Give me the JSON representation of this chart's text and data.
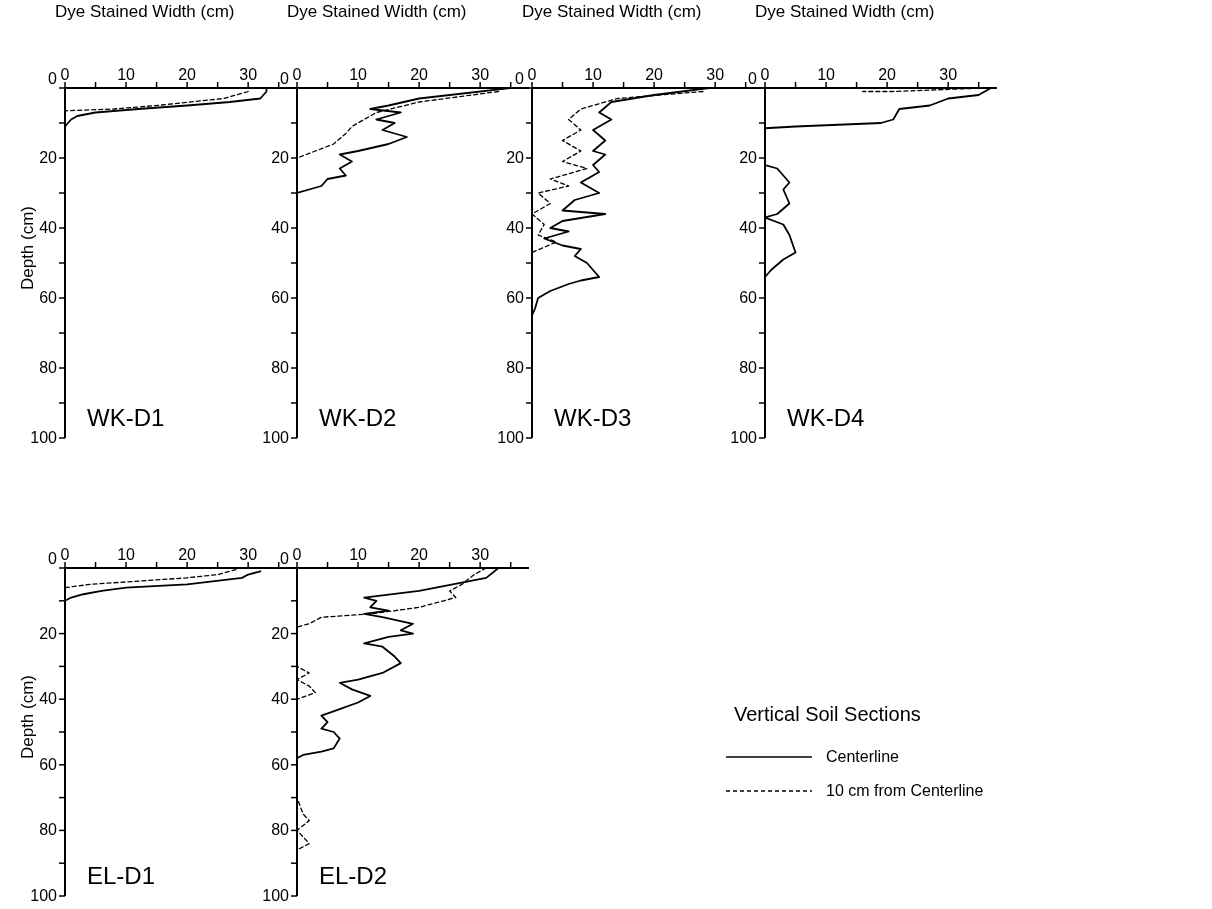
{
  "chart_data": [
    {
      "type": "line",
      "title": "WK-D1",
      "xlabel": "Dye Stained Width (cm)",
      "ylabel": "Depth (cm)",
      "xlim": [
        0,
        38
      ],
      "xticks": [
        0,
        {
          "value": 5,
          "label": null
        },
        10,
        {
          "value": 15,
          "label": null
        },
        20,
        {
          "value": 25,
          "label": null
        },
        30,
        {
          "value": 35,
          "label": null
        }
      ],
      "ylim": [
        100,
        0
      ],
      "yticks": [
        0,
        {
          "value": 10,
          "label": null
        },
        20,
        {
          "value": 30,
          "label": null
        },
        40,
        {
          "value": 50,
          "label": null
        },
        60,
        {
          "value": 70,
          "label": null
        },
        80,
        {
          "value": 90,
          "label": null
        },
        100
      ],
      "series": [
        {
          "color": "#000000",
          "line_style": "solid",
          "x": [
            33,
            33,
            32,
            27,
            20,
            12,
            5,
            2,
            1,
            0.5,
            0
          ],
          "values": [
            0,
            1,
            3,
            4,
            5,
            6,
            7,
            8,
            9,
            10,
            11
          ]
        },
        {
          "color": "#000000",
          "line_style": "dashed",
          "x": [
            30,
            26,
            15,
            8,
            0
          ],
          "values": [
            1,
            3,
            5,
            6,
            6.5
          ]
        }
      ]
    },
    {
      "type": "line",
      "title": "WK-D2",
      "xlabel": "Dye Stained Width (cm)",
      "xlim": [
        0,
        38
      ],
      "xticks": [
        0,
        {
          "value": 5,
          "label": null
        },
        10,
        {
          "value": 15,
          "label": null
        },
        20,
        {
          "value": 25,
          "label": null
        },
        30,
        {
          "value": 35,
          "label": null
        }
      ],
      "ylim": [
        100,
        0
      ],
      "yticks": [
        0,
        {
          "value": 10,
          "label": null
        },
        20,
        {
          "value": 30,
          "label": null
        },
        40,
        {
          "value": 50,
          "label": null
        },
        60,
        {
          "value": 70,
          "label": null
        },
        80,
        {
          "value": 90,
          "label": null
        },
        100
      ],
      "series": [
        {
          "color": "#000000",
          "line_style": "solid",
          "x": [
            35,
            20,
            15,
            12,
            17,
            13,
            16,
            14,
            18,
            15,
            10,
            7,
            9,
            7,
            8,
            5,
            4,
            0
          ],
          "values": [
            0,
            3,
            5,
            6,
            7,
            9,
            10,
            12,
            14,
            16,
            18,
            19,
            21,
            23,
            25,
            26,
            28,
            30
          ]
        },
        {
          "color": "#000000",
          "line_style": "dashed",
          "x": [
            33,
            20,
            13,
            11,
            9,
            8,
            6,
            3,
            0
          ],
          "values": [
            1,
            4,
            7,
            9,
            11,
            13,
            16,
            18,
            20
          ]
        }
      ]
    },
    {
      "type": "line",
      "title": "WK-D3",
      "xlabel": "Dye Stained Width (cm)",
      "xlim": [
        0,
        38
      ],
      "xticks": [
        0,
        {
          "value": 5,
          "label": null
        },
        10,
        {
          "value": 15,
          "label": null
        },
        20,
        {
          "value": 25,
          "label": null
        },
        30,
        {
          "value": 35,
          "label": null
        }
      ],
      "ylim": [
        100,
        0
      ],
      "yticks": [
        0,
        {
          "value": 10,
          "label": null
        },
        20,
        {
          "value": 30,
          "label": null
        },
        40,
        {
          "value": 50,
          "label": null
        },
        60,
        {
          "value": 70,
          "label": null
        },
        80,
        {
          "value": 90,
          "label": null
        },
        100
      ],
      "series": [
        {
          "color": "#000000",
          "line_style": "solid",
          "x": [
            29,
            20,
            13,
            11,
            13,
            10,
            12,
            10,
            12,
            10,
            11,
            8,
            10,
            11,
            7,
            5,
            12,
            5,
            3,
            6,
            2,
            5,
            8,
            7,
            9,
            10,
            11,
            8,
            6,
            3,
            1,
            0.5,
            0
          ],
          "values": [
            0,
            2,
            4,
            7,
            9,
            12,
            15,
            18,
            19,
            22,
            24,
            27,
            29,
            30,
            32,
            35,
            36,
            38,
            40,
            41,
            43,
            45,
            46,
            48,
            50,
            52,
            54,
            55,
            56,
            58,
            60,
            63,
            65
          ]
        },
        {
          "color": "#000000",
          "line_style": "dashed",
          "x": [
            28,
            14,
            8,
            6,
            8,
            5,
            8,
            5,
            9,
            3,
            6,
            1,
            3,
            0,
            2,
            1,
            4,
            0
          ],
          "values": [
            1,
            3,
            6,
            9,
            12,
            15,
            18,
            21,
            23,
            26,
            28,
            30,
            33,
            36,
            39,
            42,
            44,
            47
          ]
        }
      ]
    },
    {
      "type": "line",
      "title": "WK-D4",
      "xlabel": "Dye Stained Width (cm)",
      "xlim": [
        0,
        38
      ],
      "xticks": [
        0,
        {
          "value": 5,
          "label": null
        },
        10,
        {
          "value": 15,
          "label": null
        },
        20,
        {
          "value": 25,
          "label": null
        },
        30,
        {
          "value": 35,
          "label": null
        }
      ],
      "ylim": [
        100,
        0
      ],
      "yticks": [
        0,
        {
          "value": 10,
          "label": null
        },
        20,
        {
          "value": 30,
          "label": null
        },
        40,
        {
          "value": 50,
          "label": null
        },
        60,
        {
          "value": 70,
          "label": null
        },
        80,
        {
          "value": 90,
          "label": null
        },
        100
      ],
      "series": [
        {
          "color": "#000000",
          "line_style": "solid",
          "x": [
            37,
            35,
            30,
            27,
            22,
            21,
            19,
            5,
            0,
            0,
            2,
            4,
            3,
            4,
            2,
            0,
            3,
            4,
            5,
            3,
            1,
            0,
            0
          ],
          "values": [
            0,
            2,
            3,
            5,
            6,
            9,
            10,
            11,
            11.5,
            22,
            23,
            27,
            29,
            33,
            36,
            37,
            39,
            42,
            47,
            49,
            52,
            54,
            56
          ]
        },
        {
          "color": "#000000",
          "line_style": "dashed",
          "x": [
            36,
            21,
            16
          ],
          "values": [
            0,
            1,
            1
          ]
        }
      ]
    },
    {
      "type": "line",
      "title": "EL-D1",
      "ylabel": "Depth (cm)",
      "xlim": [
        0,
        38
      ],
      "xticks": [
        0,
        {
          "value": 5,
          "label": null
        },
        10,
        {
          "value": 15,
          "label": null
        },
        20,
        {
          "value": 25,
          "label": null
        },
        30,
        {
          "value": 35,
          "label": null
        }
      ],
      "ylim": [
        100,
        0
      ],
      "yticks": [
        0,
        {
          "value": 10,
          "label": null
        },
        20,
        {
          "value": 30,
          "label": null
        },
        40,
        {
          "value": 50,
          "label": null
        },
        60,
        {
          "value": 70,
          "label": null
        },
        80,
        {
          "value": 90,
          "label": null
        },
        100
      ],
      "series": [
        {
          "color": "#000000",
          "line_style": "solid",
          "x": [
            32,
            30,
            29,
            20,
            10,
            6,
            3,
            1,
            0
          ],
          "values": [
            1,
            2,
            3,
            5,
            6,
            7,
            8,
            9,
            10
          ]
        },
        {
          "color": "#000000",
          "line_style": "dashed",
          "x": [
            28,
            25,
            20,
            12,
            4,
            0
          ],
          "values": [
            0.5,
            2,
            3,
            4,
            5,
            6
          ]
        }
      ]
    },
    {
      "type": "line",
      "title": "EL-D2",
      "legend_title": "Vertical Soil Sections",
      "legend": "right",
      "xlim": [
        0,
        38
      ],
      "xticks": [
        0,
        {
          "value": 5,
          "label": null
        },
        10,
        {
          "value": 15,
          "label": null
        },
        20,
        {
          "value": 25,
          "label": null
        },
        30,
        {
          "value": 35,
          "label": null
        }
      ],
      "ylim": [
        100,
        0
      ],
      "yticks": [
        0,
        {
          "value": 10,
          "label": null
        },
        20,
        {
          "value": 30,
          "label": null
        },
        40,
        {
          "value": 50,
          "label": null
        },
        60,
        {
          "value": 70,
          "label": null
        },
        80,
        {
          "value": 90,
          "label": null
        },
        100
      ],
      "series": [
        {
          "name": "Centerline",
          "color": "#000000",
          "line_style": "solid",
          "x": [
            33,
            31,
            20,
            11,
            13,
            12,
            15,
            11,
            14,
            19,
            17,
            19,
            15,
            11,
            14,
            16,
            17,
            14,
            10,
            7,
            9,
            12,
            10,
            7,
            4,
            5,
            4,
            6,
            7,
            6,
            4,
            1,
            0
          ],
          "values": [
            0,
            3,
            7,
            9,
            10,
            12,
            13,
            14,
            15,
            17,
            19,
            20,
            21,
            23,
            24,
            27,
            29,
            32,
            34,
            35,
            37,
            39,
            41,
            43,
            45,
            47,
            49,
            50,
            52,
            55,
            56,
            57,
            58
          ]
        },
        {
          "name": "10 cm from Centerline",
          "color": "#000000",
          "line_style": "dashed",
          "x": [
            31,
            29,
            27,
            25,
            26,
            20,
            12,
            4,
            2,
            0,
            0,
            2,
            0,
            2,
            3,
            0,
            0,
            1,
            2,
            0,
            2,
            0
          ],
          "values": [
            0,
            2,
            5,
            7,
            9,
            12,
            14,
            15,
            17,
            18,
            30,
            32,
            34,
            36,
            38,
            40,
            70,
            75,
            77,
            80,
            84,
            86
          ]
        }
      ]
    }
  ]
}
